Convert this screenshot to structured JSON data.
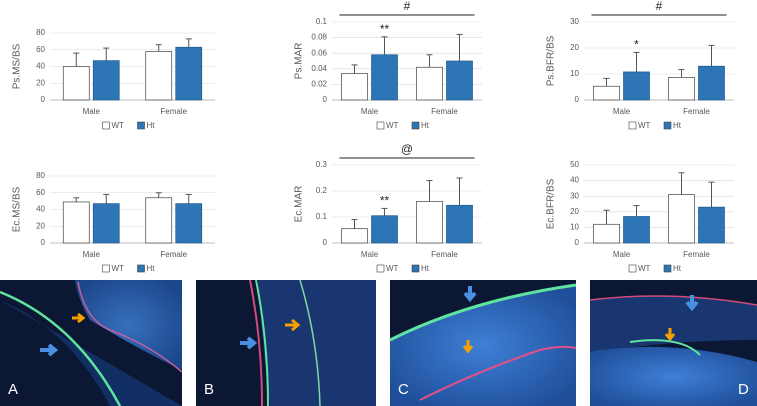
{
  "chart_data": [
    {
      "type": "bar",
      "ylabel": "Ps.MS/BS",
      "categories": [
        "Male",
        "Female"
      ],
      "ylim": [
        0,
        80
      ],
      "yticks": [
        0,
        20,
        40,
        60,
        80
      ],
      "series": [
        {
          "name": "WT",
          "color": "#ffffff",
          "values": [
            40,
            58
          ],
          "errors": [
            16,
            8
          ]
        },
        {
          "name": "Ht",
          "color": "#2e75b6",
          "values": [
            47,
            63
          ],
          "errors": [
            15,
            10
          ]
        }
      ],
      "annotations": []
    },
    {
      "type": "bar",
      "ylabel": "Ps.MAR",
      "categories": [
        "Male",
        "Female"
      ],
      "ylim": [
        0,
        0.1
      ],
      "yticks": [
        0,
        0.02,
        0.04,
        0.06,
        0.08,
        0.1
      ],
      "series": [
        {
          "name": "WT",
          "color": "#ffffff",
          "values": [
            0.034,
            0.042
          ],
          "errors": [
            0.011,
            0.016
          ]
        },
        {
          "name": "Ht",
          "color": "#2e75b6",
          "values": [
            0.058,
            0.05
          ],
          "errors": [
            0.023,
            0.034
          ]
        }
      ],
      "annotations": [
        {
          "text": "**",
          "category": 0,
          "series": 1
        },
        {
          "text": "#",
          "bracket": true
        }
      ]
    },
    {
      "type": "bar",
      "ylabel": "Ps.BFR/BS",
      "categories": [
        "Male",
        "Female"
      ],
      "ylim": [
        0,
        30
      ],
      "yticks": [
        0,
        10,
        20,
        30
      ],
      "series": [
        {
          "name": "WT",
          "color": "#ffffff",
          "values": [
            5.3,
            8.7
          ],
          "errors": [
            3,
            3
          ]
        },
        {
          "name": "Ht",
          "color": "#2e75b6",
          "values": [
            10.8,
            13
          ],
          "errors": [
            7.5,
            8
          ]
        }
      ],
      "annotations": [
        {
          "text": "*",
          "category": 0,
          "series": 1
        },
        {
          "text": "#",
          "bracket": true
        }
      ]
    },
    {
      "type": "bar",
      "ylabel": "Ec.MS/BS",
      "categories": [
        "Male",
        "Female"
      ],
      "ylim": [
        0,
        80
      ],
      "yticks": [
        0,
        20,
        40,
        60,
        80
      ],
      "series": [
        {
          "name": "WT",
          "color": "#ffffff",
          "values": [
            49,
            54
          ],
          "errors": [
            5,
            6
          ]
        },
        {
          "name": "Ht",
          "color": "#2e75b6",
          "values": [
            47,
            47
          ],
          "errors": [
            11,
            11
          ]
        }
      ],
      "annotations": []
    },
    {
      "type": "bar",
      "ylabel": "Ec.MAR",
      "categories": [
        "Male",
        "Female"
      ],
      "ylim": [
        0,
        0.3
      ],
      "yticks": [
        0,
        0.1,
        0.2,
        0.3
      ],
      "series": [
        {
          "name": "WT",
          "color": "#ffffff",
          "values": [
            0.055,
            0.16
          ],
          "errors": [
            0.035,
            0.08
          ]
        },
        {
          "name": "Ht",
          "color": "#2e75b6",
          "values": [
            0.105,
            0.145
          ],
          "errors": [
            0.028,
            0.105
          ]
        }
      ],
      "annotations": [
        {
          "text": "**",
          "category": 0,
          "series": 1
        },
        {
          "text": "@",
          "bracket": true
        }
      ]
    },
    {
      "type": "bar",
      "ylabel": "Ec.BFR/BS",
      "categories": [
        "Male",
        "Female"
      ],
      "ylim": [
        0,
        50
      ],
      "yticks": [
        0,
        10,
        20,
        30,
        40,
        50
      ],
      "series": [
        {
          "name": "WT",
          "color": "#ffffff",
          "values": [
            12,
            31
          ],
          "errors": [
            9,
            14
          ]
        },
        {
          "name": "Ht",
          "color": "#2e75b6",
          "values": [
            17,
            23
          ],
          "errors": [
            7,
            16
          ]
        }
      ],
      "annotations": []
    }
  ],
  "image_labels": [
    "A",
    "B",
    "C",
    "D"
  ]
}
